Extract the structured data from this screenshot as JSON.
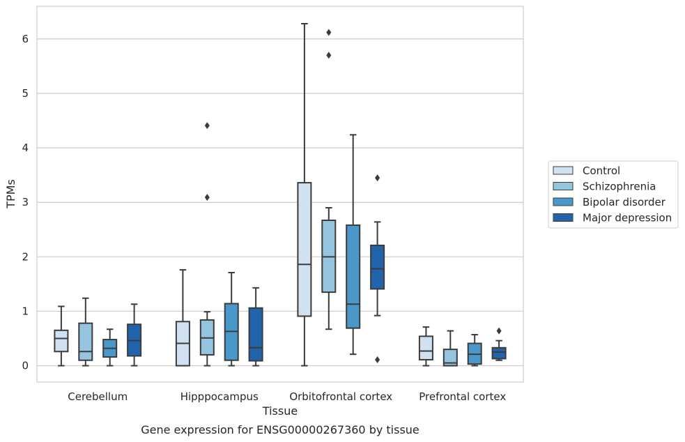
{
  "chart_data": {
    "type": "boxplot",
    "xlabel": "Tissue",
    "ylabel": "TPMs",
    "caption": "Gene expression for ENSG00000267360 by tissue",
    "categories": [
      "Cerebellum",
      "Hipppocampus",
      "Orbitofrontal cortex",
      "Prefrontal cortex"
    ],
    "ylim": [
      -0.3,
      6.6
    ],
    "yticks": [
      "0",
      "1",
      "2",
      "3",
      "4",
      "5",
      "6"
    ],
    "grid": "y",
    "legend_position": "right",
    "series": [
      {
        "name": "Control",
        "color": "#d0e1f2",
        "boxes": [
          {
            "whislo": 0.0,
            "q1": 0.26,
            "med": 0.5,
            "q3": 0.65,
            "whishi": 1.09,
            "fliers": []
          },
          {
            "whislo": 0.0,
            "q1": 0.0,
            "med": 0.41,
            "q3": 0.81,
            "whishi": 1.76,
            "fliers": []
          },
          {
            "whislo": 0.0,
            "q1": 0.91,
            "med": 1.86,
            "q3": 3.36,
            "whishi": 6.28,
            "fliers": []
          },
          {
            "whislo": 0.0,
            "q1": 0.11,
            "med": 0.27,
            "q3": 0.54,
            "whishi": 0.71,
            "fliers": []
          }
        ]
      },
      {
        "name": "Schizophrenia",
        "color": "#94c4df",
        "boxes": [
          {
            "whislo": 0.0,
            "q1": 0.1,
            "med": 0.26,
            "q3": 0.78,
            "whishi": 1.24,
            "fliers": []
          },
          {
            "whislo": 0.0,
            "q1": 0.2,
            "med": 0.51,
            "q3": 0.84,
            "whishi": 0.99,
            "fliers": [
              4.41,
              3.09
            ]
          },
          {
            "whislo": 0.67,
            "q1": 1.35,
            "med": 2.0,
            "q3": 2.67,
            "whishi": 2.9,
            "fliers": [
              6.12,
              5.7
            ]
          },
          {
            "whislo": 0.0,
            "q1": 0.0,
            "med": 0.05,
            "q3": 0.3,
            "whishi": 0.64,
            "fliers": []
          }
        ]
      },
      {
        "name": "Bipolar disorder",
        "color": "#4a98c9",
        "boxes": [
          {
            "whislo": 0.0,
            "q1": 0.16,
            "med": 0.32,
            "q3": 0.48,
            "whishi": 0.67,
            "fliers": []
          },
          {
            "whislo": 0.0,
            "q1": 0.1,
            "med": 0.63,
            "q3": 1.14,
            "whishi": 1.71,
            "fliers": []
          },
          {
            "whislo": 0.21,
            "q1": 0.69,
            "med": 1.13,
            "q3": 2.58,
            "whishi": 4.24,
            "fliers": []
          },
          {
            "whislo": 0.0,
            "q1": 0.03,
            "med": 0.21,
            "q3": 0.41,
            "whishi": 0.57,
            "fliers": []
          }
        ]
      },
      {
        "name": "Major depression",
        "color": "#2164ab",
        "boxes": [
          {
            "whislo": 0.0,
            "q1": 0.18,
            "med": 0.46,
            "q3": 0.76,
            "whishi": 1.13,
            "fliers": []
          },
          {
            "whislo": 0.0,
            "q1": 0.09,
            "med": 0.33,
            "q3": 1.06,
            "whishi": 1.43,
            "fliers": []
          },
          {
            "whislo": 0.92,
            "q1": 1.41,
            "med": 1.78,
            "q3": 2.21,
            "whishi": 2.64,
            "fliers": [
              3.45,
              0.11
            ]
          },
          {
            "whislo": 0.1,
            "q1": 0.13,
            "med": 0.25,
            "q3": 0.33,
            "whishi": 0.46,
            "fliers": [
              0.64
            ]
          }
        ]
      }
    ]
  }
}
